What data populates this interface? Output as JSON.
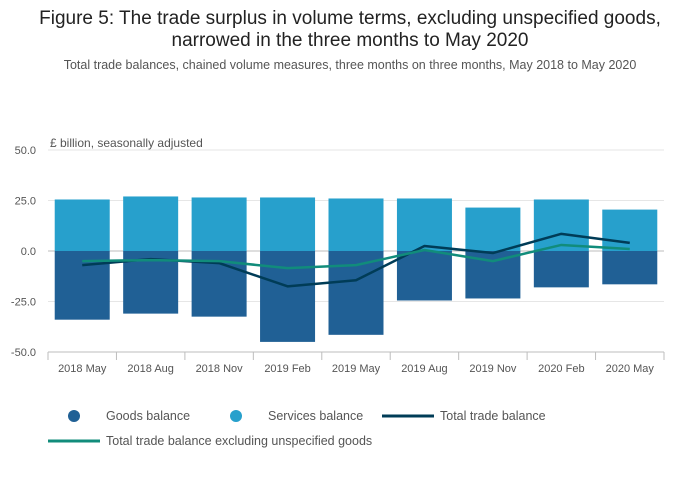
{
  "chart_data": {
    "type": "bar",
    "title": "Figure 5: The trade surplus in volume terms, excluding unspecified goods, narrowed in the three months to May 2020",
    "subtitle": "Total trade balances, chained volume measures, three months on three months, May 2018 to May 2020",
    "ylabel": "£ billion, seasonally adjusted",
    "ylim": [
      -50,
      50
    ],
    "yticks": [
      50,
      25,
      0,
      -25,
      -50
    ],
    "ytick_labels": [
      "50.0",
      "25.0",
      "0.0",
      "-25.0",
      "-50.0"
    ],
    "categories": [
      "2018 May",
      "2018 Aug",
      "2018 Nov",
      "2019 Feb",
      "2019 May",
      "2019 Aug",
      "2019 Nov",
      "2020 Feb",
      "2020 May"
    ],
    "series": [
      {
        "name": "Goods balance",
        "kind": "bar",
        "color": "#206095",
        "values": [
          -34,
          -31,
          -32.5,
          -45,
          -41.5,
          -24.5,
          -23.5,
          -18,
          -16.5
        ]
      },
      {
        "name": "Services balance",
        "kind": "bar",
        "color": "#27a0cc",
        "values": [
          25.5,
          27,
          26.5,
          26.5,
          26,
          26,
          21.5,
          25.5,
          20.5
        ]
      },
      {
        "name": "Total trade balance",
        "kind": "line",
        "color": "#003c57",
        "values": [
          -7,
          -4,
          -6,
          -17.5,
          -14.5,
          2.5,
          -1,
          8.5,
          4
        ]
      },
      {
        "name": "Total trade balance excluding unspecified goods",
        "kind": "line",
        "color": "#118c7b",
        "values": [
          -5,
          -4.5,
          -5,
          -8.5,
          -7,
          0.5,
          -5,
          3,
          1
        ]
      }
    ],
    "legend": "bottom"
  }
}
